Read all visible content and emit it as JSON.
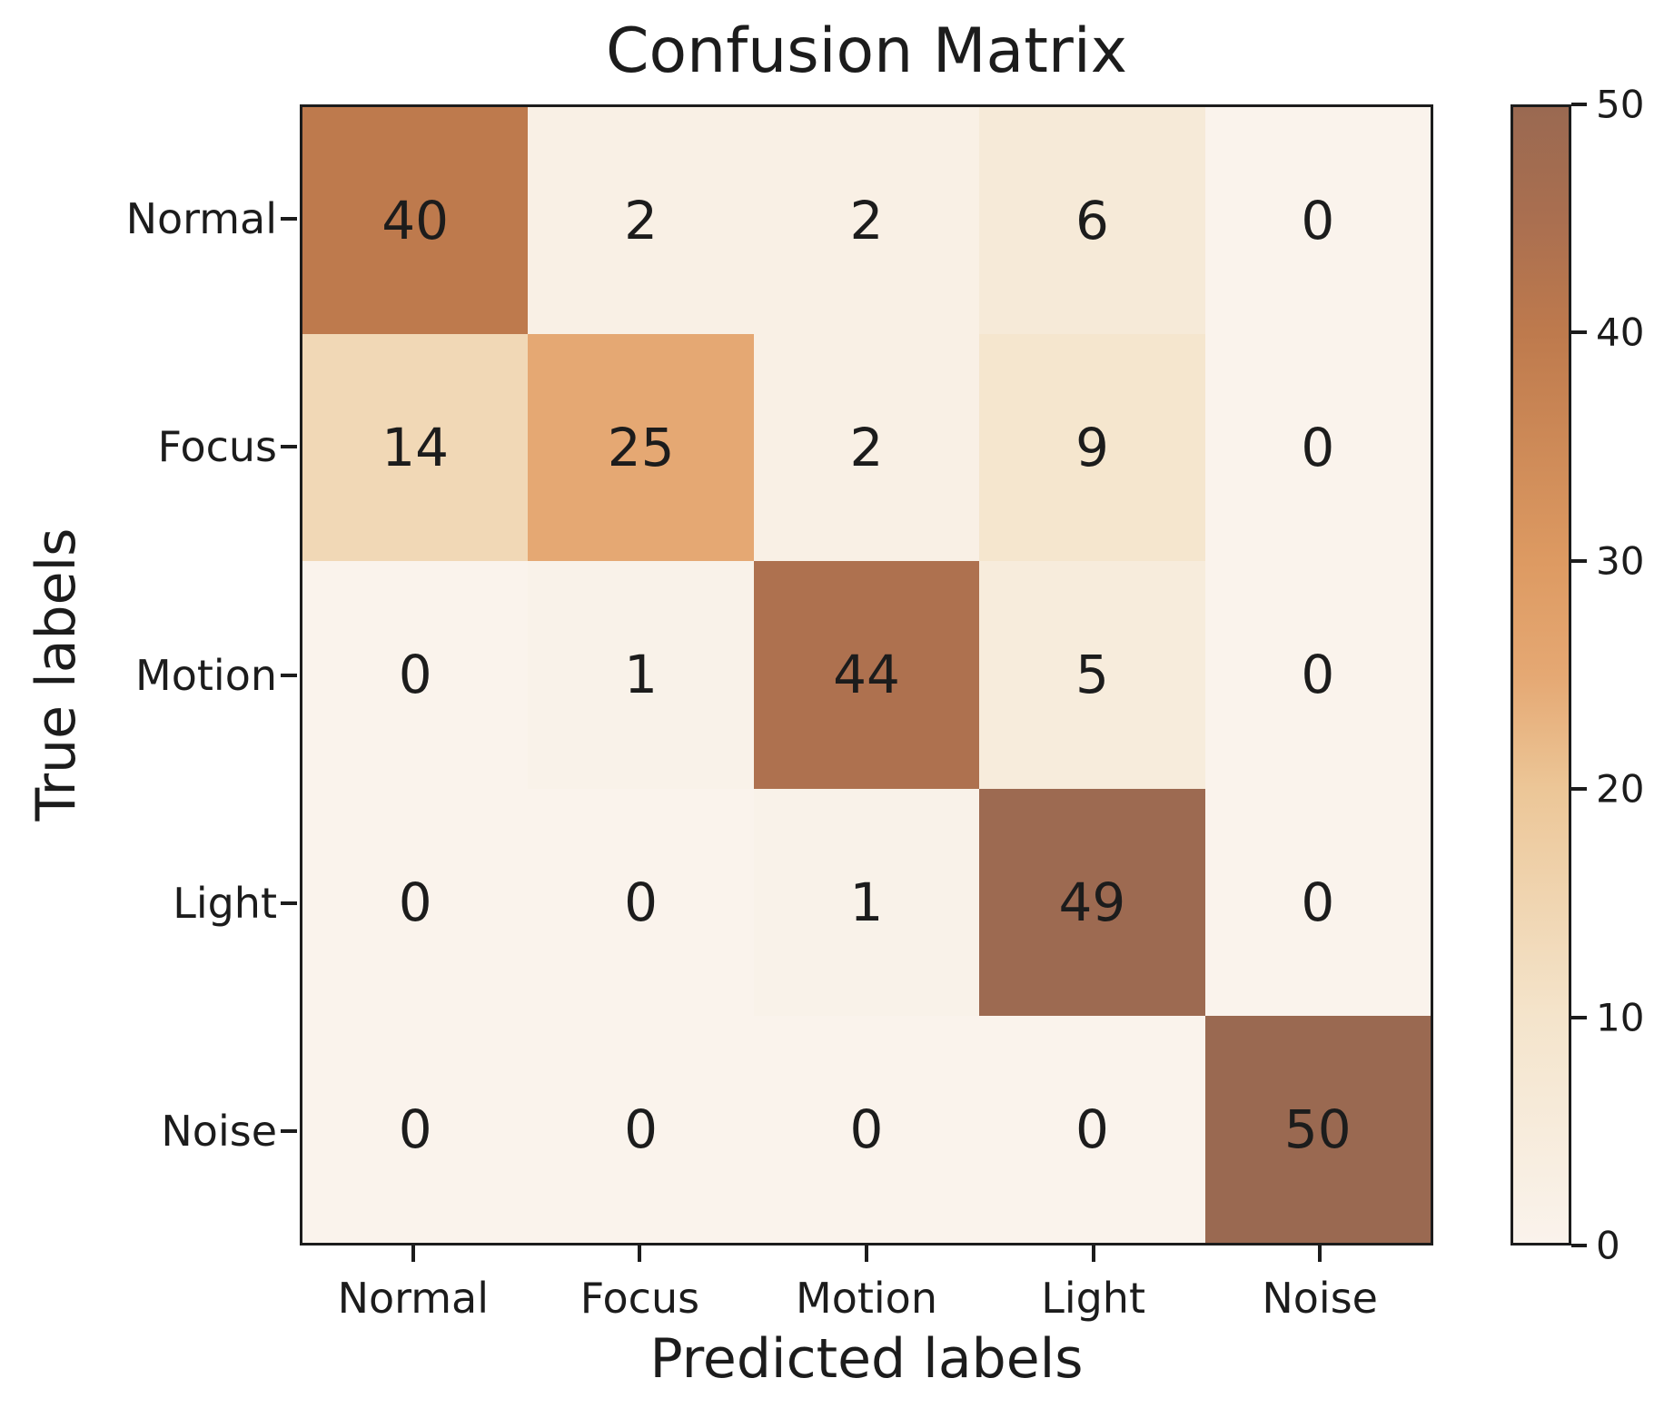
{
  "chart_data": {
    "type": "heatmap",
    "title": "Confusion Matrix",
    "xlabel": "Predicted labels",
    "ylabel": "True labels",
    "x_categories": [
      "Normal",
      "Focus",
      "Motion",
      "Light",
      "Noise"
    ],
    "y_categories": [
      "Normal",
      "Focus",
      "Motion",
      "Light",
      "Noise"
    ],
    "matrix": [
      [
        40,
        2,
        2,
        6,
        0
      ],
      [
        14,
        25,
        2,
        9,
        0
      ],
      [
        0,
        1,
        44,
        5,
        0
      ],
      [
        0,
        0,
        1,
        49,
        0
      ],
      [
        0,
        0,
        0,
        0,
        50
      ]
    ],
    "vmin": 0,
    "vmax": 50,
    "colorbar_ticks": [
      0,
      10,
      20,
      30,
      40,
      50
    ],
    "colormap_stops": [
      {
        "value": 0,
        "color": "#faf3ec"
      },
      {
        "value": 10,
        "color": "#f4e4cb"
      },
      {
        "value": 20,
        "color": "#ecc697"
      },
      {
        "value": 25,
        "color": "#e5a873"
      },
      {
        "value": 30,
        "color": "#dd9a62"
      },
      {
        "value": 40,
        "color": "#be7a4d"
      },
      {
        "value": 45,
        "color": "#aa6f50"
      },
      {
        "value": 50,
        "color": "#9a6951"
      }
    ],
    "annotation_color": "#1c1c1c",
    "spine_color": "#1c1c1c",
    "background_color": "#ffffff",
    "legend_position": "right-colorbar",
    "grid": "off"
  }
}
